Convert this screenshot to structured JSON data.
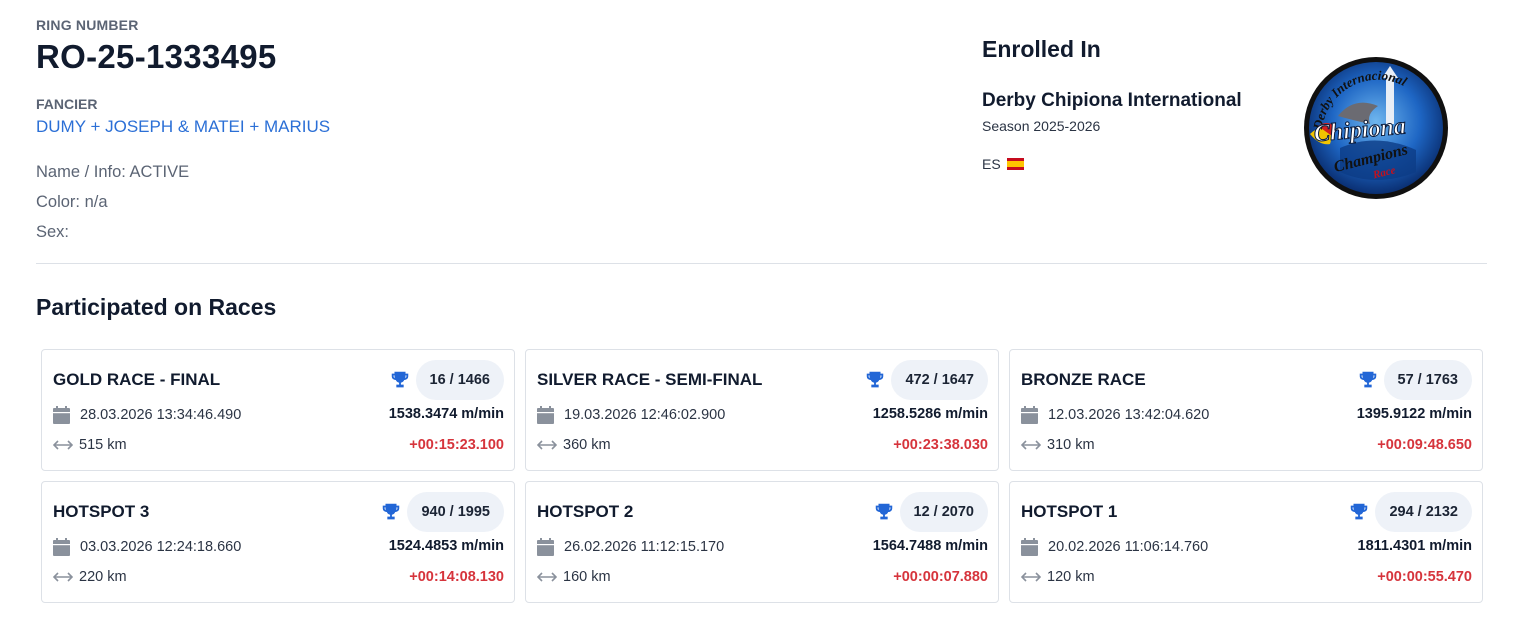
{
  "bird": {
    "ring_label": "RING NUMBER",
    "ring_number": "RO-25-1333495",
    "fancier_label": "FANCIER",
    "fancier_name": "DUMY + JOSEPH & MATEI + MARIUS",
    "info": "Name / Info: ACTIVE",
    "color": "Color: n/a",
    "sex": "Sex:"
  },
  "enrolled": {
    "title": "Enrolled In",
    "competition": "Derby Chipiona International",
    "season": "Season 2025-2026",
    "country_code": "ES",
    "logo_texts": [
      "Derby Internacional",
      "Chipiona",
      "Champions",
      "Race"
    ]
  },
  "races_section": {
    "title": "Participated on Races"
  },
  "colors": {
    "link": "#2b6fd6",
    "trophy": "#2266d6",
    "delta": "#d6343c",
    "pill_bg": "#eef2f8"
  },
  "races": [
    {
      "name": "GOLD RACE - FINAL",
      "rank": "16 / 1466",
      "date": "28.03.2026 13:34:46.490",
      "speed": "1538.3474 m/min",
      "distance": "515 km",
      "delta": "+00:15:23.100"
    },
    {
      "name": "SILVER RACE - SEMI-FINAL",
      "rank": "472 / 1647",
      "date": "19.03.2026 12:46:02.900",
      "speed": "1258.5286 m/min",
      "distance": "360 km",
      "delta": "+00:23:38.030"
    },
    {
      "name": "BRONZE RACE",
      "rank": "57 / 1763",
      "date": "12.03.2026 13:42:04.620",
      "speed": "1395.9122 m/min",
      "distance": "310 km",
      "delta": "+00:09:48.650"
    },
    {
      "name": "HOTSPOT 3",
      "rank": "940 / 1995",
      "date": "03.03.2026 12:24:18.660",
      "speed": "1524.4853 m/min",
      "distance": "220 km",
      "delta": "+00:14:08.130"
    },
    {
      "name": "HOTSPOT 2",
      "rank": "12 / 2070",
      "date": "26.02.2026 11:12:15.170",
      "speed": "1564.7488 m/min",
      "distance": "160 km",
      "delta": "+00:00:07.880"
    },
    {
      "name": "HOTSPOT 1",
      "rank": "294 / 2132",
      "date": "20.02.2026 11:06:14.760",
      "speed": "1811.4301 m/min",
      "distance": "120 km",
      "delta": "+00:00:55.470"
    }
  ]
}
